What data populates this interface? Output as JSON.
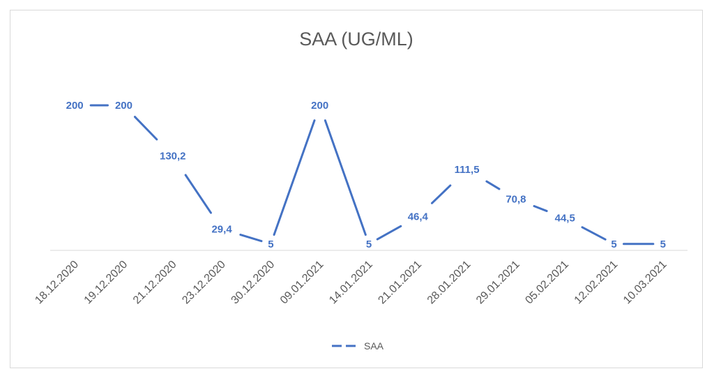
{
  "chart_data": {
    "type": "line",
    "title": "SAA (UG/ML)",
    "categories": [
      "18.12.2020",
      "19.12.2020",
      "21.12.2020",
      "23.12.2020",
      "30.12.2020",
      "09.01.2021",
      "14.01.2021",
      "21.01.2021",
      "28.01.2021",
      "29.01.2021",
      "05.02.2021",
      "12.02.2021",
      "10.03.2021"
    ],
    "series": [
      {
        "name": "SAA",
        "values": [
          200,
          200,
          130.2,
          29.4,
          5,
          200,
          5,
          46.4,
          111.5,
          70.8,
          44.5,
          5,
          5
        ],
        "labels": [
          "200",
          "200",
          "130,2",
          "29,4",
          "5",
          "200",
          "5",
          "46,4",
          "111,5",
          "70,8",
          "44,5",
          "5",
          "5"
        ],
        "color": "#4472c4"
      }
    ],
    "ylim": [
      0,
      210
    ],
    "grid": false,
    "legend_position": "bottom",
    "data_labels": true,
    "line_style": "solid with gaps at data labels"
  }
}
